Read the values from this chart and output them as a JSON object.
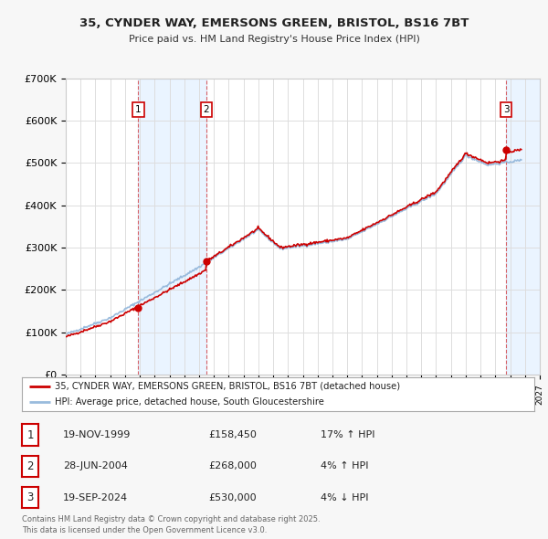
{
  "title_line1": "35, CYNDER WAY, EMERSONS GREEN, BRISTOL, BS16 7BT",
  "title_line2": "Price paid vs. HM Land Registry's House Price Index (HPI)",
  "ylim": [
    0,
    700000
  ],
  "yticks": [
    0,
    100000,
    200000,
    300000,
    400000,
    500000,
    600000,
    700000
  ],
  "ytick_labels": [
    "£0",
    "£100K",
    "£200K",
    "£300K",
    "£400K",
    "£500K",
    "£600K",
    "£700K"
  ],
  "xmin": 1995.0,
  "xmax": 2027.0,
  "bg_color": "#f7f7f7",
  "plot_bg_color": "#ffffff",
  "grid_color": "#dddddd",
  "red_color": "#cc0000",
  "blue_color": "#99bbdd",
  "shade_color": "#ddeeff",
  "transactions": [
    {
      "date_dec": 1999.89,
      "price": 158450,
      "label": "1"
    },
    {
      "date_dec": 2004.49,
      "price": 268000,
      "label": "2"
    },
    {
      "date_dec": 2024.72,
      "price": 530000,
      "label": "3"
    }
  ],
  "legend_line1": "35, CYNDER WAY, EMERSONS GREEN, BRISTOL, BS16 7BT (detached house)",
  "legend_line2": "HPI: Average price, detached house, South Gloucestershire",
  "table_rows": [
    {
      "num": "1",
      "date": "19-NOV-1999",
      "price": "£158,450",
      "change": "17% ↑ HPI"
    },
    {
      "num": "2",
      "date": "28-JUN-2004",
      "price": "£268,000",
      "change": "4% ↑ HPI"
    },
    {
      "num": "3",
      "date": "19-SEP-2024",
      "price": "£530,000",
      "change": "4% ↓ HPI"
    }
  ],
  "footnote": "Contains HM Land Registry data © Crown copyright and database right 2025.\nThis data is licensed under the Open Government Licence v3.0."
}
